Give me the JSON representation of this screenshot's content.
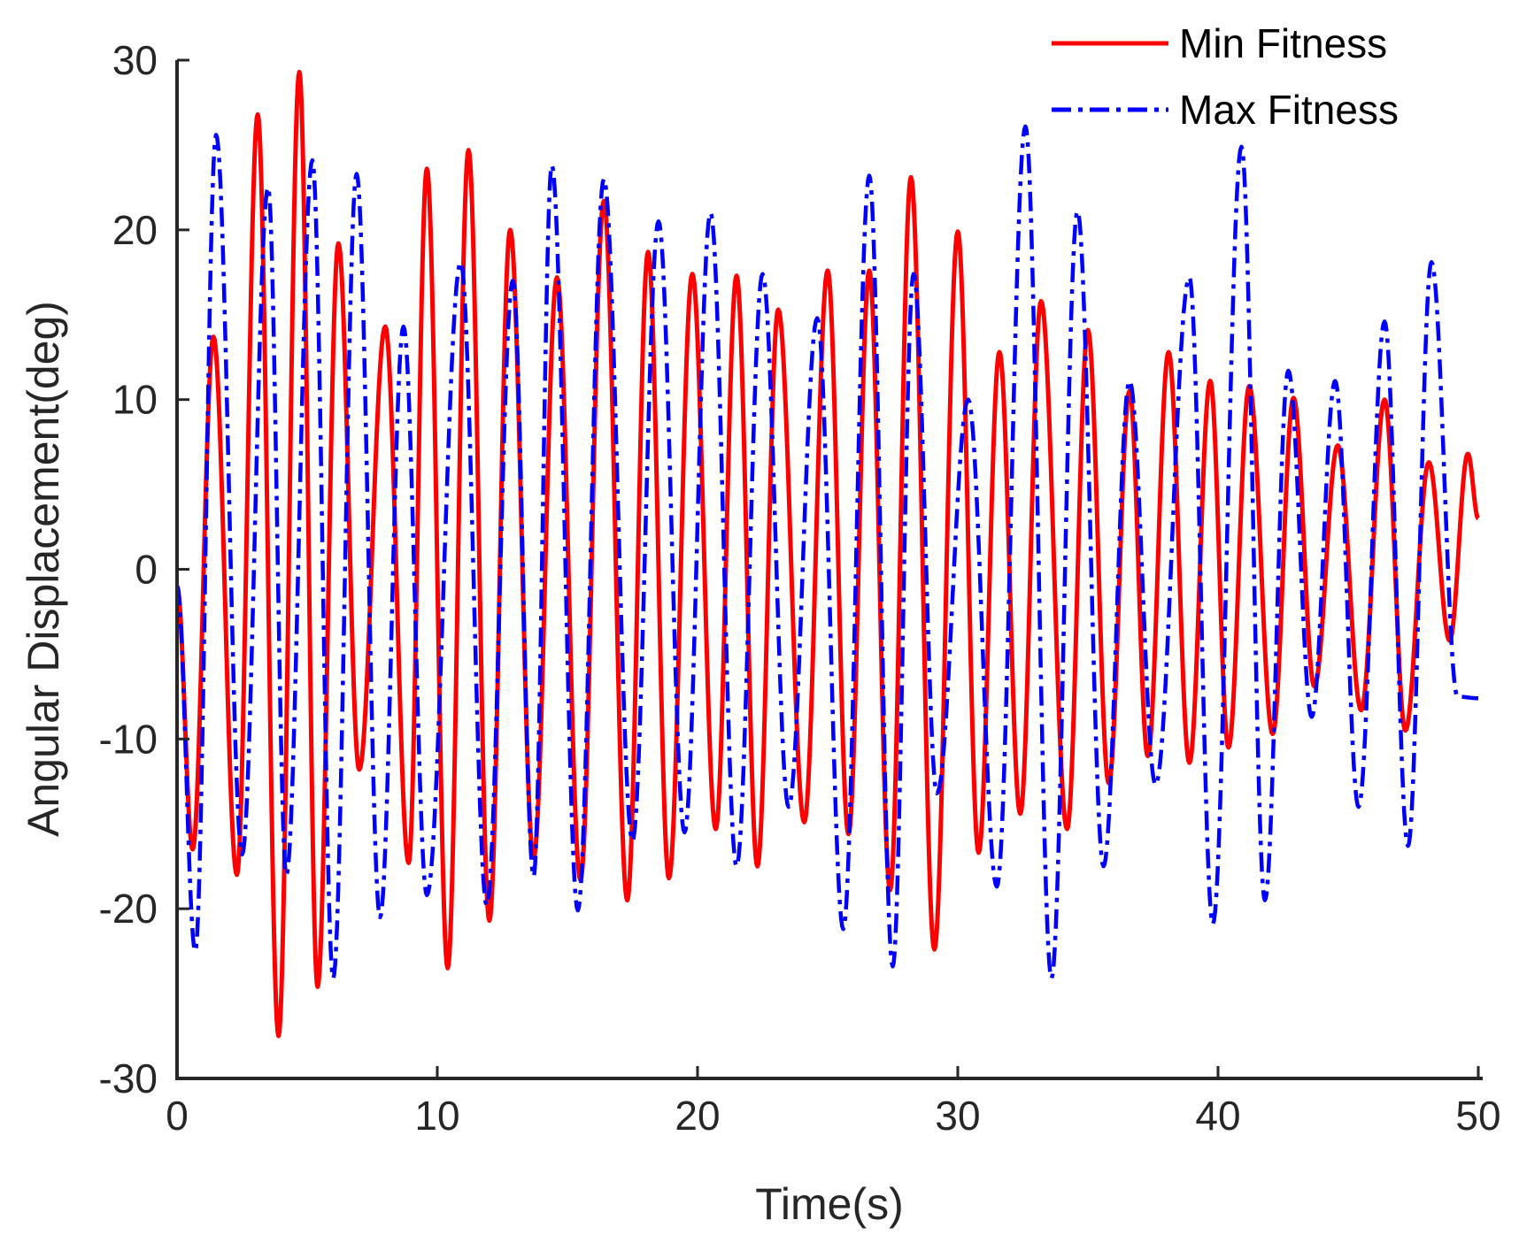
{
  "chart_data": {
    "type": "line",
    "xlabel": "Time(s)",
    "ylabel": "Angular Displacement(deg)",
    "xlim": [
      0,
      50
    ],
    "ylim": [
      -30,
      30
    ],
    "xticks": [
      "0",
      "10",
      "20",
      "30",
      "40",
      "50"
    ],
    "yticks": [
      "-30",
      "-20",
      "-10",
      "0",
      "10",
      "20",
      "30"
    ],
    "grid": false,
    "legend_position": "top-right",
    "series": [
      {
        "name": "Min Fitness",
        "color": "#ff0000",
        "style": "solid",
        "x": [
          0,
          0.6,
          1.4,
          2.3,
          3.1,
          3.9,
          4.7,
          5.4,
          6.2,
          7.0,
          8.0,
          8.9,
          9.6,
          10.4,
          11.2,
          12.0,
          12.8,
          13.7,
          14.6,
          15.5,
          16.4,
          17.3,
          18.1,
          18.9,
          19.8,
          20.7,
          21.5,
          22.3,
          23.1,
          24.1,
          25.0,
          25.8,
          26.6,
          27.4,
          28.2,
          29.1,
          30.0,
          30.8,
          31.6,
          32.4,
          33.2,
          34.2,
          35.0,
          35.8,
          36.6,
          37.3,
          38.1,
          38.9,
          39.7,
          40.4,
          41.2,
          42.1,
          42.9,
          43.7,
          44.6,
          45.5,
          46.4,
          47.2,
          48.1,
          48.9,
          49.6,
          50.0
        ],
        "y": [
          -1,
          -16.5,
          13.7,
          -18,
          26.8,
          -27.5,
          29.3,
          -24.6,
          19.2,
          -11.8,
          14.3,
          -17.3,
          23.6,
          -23.5,
          24.7,
          -20.7,
          20,
          -17,
          17.2,
          -18.3,
          21.7,
          -19.5,
          18.7,
          -18.2,
          17.4,
          -15.3,
          17.3,
          -17.5,
          15.3,
          -14.9,
          17.6,
          -15.6,
          17.6,
          -18.9,
          23.1,
          -22.4,
          19.9,
          -16.7,
          12.8,
          -14.4,
          15.8,
          -15.3,
          14.1,
          -12.6,
          10.5,
          -11,
          12.8,
          -11.4,
          11.1,
          -10.5,
          10.8,
          -9.7,
          10.1,
          -6.9,
          7.3,
          -8.3,
          10,
          -9.5,
          6.3,
          -4.2,
          6.8,
          3
        ]
      },
      {
        "name": "Max Fitness",
        "color": "#0000ff",
        "style": "dash-dot",
        "x": [
          0,
          0.7,
          1.5,
          2.5,
          3.5,
          4.2,
          5.2,
          6.0,
          6.9,
          7.8,
          8.7,
          9.6,
          10.9,
          11.9,
          12.9,
          13.7,
          14.4,
          15.4,
          16.4,
          17.5,
          18.5,
          19.5,
          20.5,
          21.5,
          22.5,
          23.5,
          24.6,
          25.6,
          26.6,
          27.5,
          28.3,
          29.2,
          30.4,
          31.5,
          32.6,
          33.6,
          34.6,
          35.6,
          36.6,
          37.6,
          38.9,
          39.8,
          40.9,
          41.8,
          42.7,
          43.6,
          44.5,
          45.4,
          46.4,
          47.3,
          48.2,
          49.2,
          50.0
        ],
        "y": [
          -1,
          -22.5,
          25.6,
          -16.8,
          22.5,
          -18,
          24.1,
          -24.1,
          23.3,
          -20.5,
          14.3,
          -19.2,
          18.1,
          -19.8,
          17,
          -18.1,
          23.8,
          -20.1,
          23,
          -16,
          20.5,
          -15.5,
          21,
          -17.5,
          17.4,
          -14,
          14.8,
          -21.2,
          23.2,
          -23.4,
          17.4,
          -13.2,
          10,
          -18.7,
          26.1,
          -24.1,
          21.1,
          -17.5,
          11.1,
          -12.7,
          17.2,
          -20.9,
          24.9,
          -19.5,
          11.7,
          -8.7,
          11.1,
          -14,
          14.6,
          -16.3,
          18.1,
          -7.5,
          -7.6
        ]
      }
    ]
  }
}
